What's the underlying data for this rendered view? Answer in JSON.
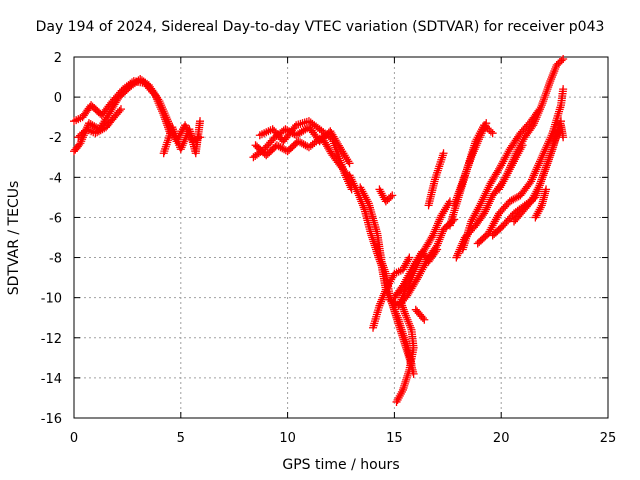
{
  "chart_data": {
    "type": "scatter",
    "title": "Day 194 of 2024, Sidereal Day-to-day VTEC variation (SDTVAR) for receiver p043",
    "xlabel": "GPS time / hours",
    "ylabel": "SDTVAR / TECUs",
    "xlim": [
      0,
      25
    ],
    "ylim": [
      -16,
      2
    ],
    "xticks": [
      0,
      5,
      10,
      15,
      20,
      25
    ],
    "yticks": [
      2,
      0,
      -2,
      -4,
      -6,
      -8,
      -10,
      -12,
      -14,
      -16
    ],
    "grid": true,
    "marker": "plus",
    "color": "#ff0000",
    "series": [
      {
        "values": [
          [
            0,
            -1.2
          ],
          [
            0.4,
            -1.0
          ],
          [
            0.8,
            -0.4
          ],
          [
            1.3,
            -0.9
          ],
          [
            1.8,
            -0.2
          ],
          [
            2.3,
            0.4
          ],
          [
            2.8,
            0.8
          ],
          [
            3.3,
            0.7
          ],
          [
            3.8,
            0.1
          ],
          [
            4.2,
            -0.9
          ],
          [
            4.5,
            -1.8
          ]
        ]
      },
      {
        "values": [
          [
            0,
            -2.7
          ],
          [
            0.3,
            -2.3
          ],
          [
            0.7,
            -1.3
          ],
          [
            1.2,
            -1.6
          ],
          [
            1.6,
            -0.9
          ],
          [
            2.1,
            0.0
          ],
          [
            2.6,
            0.5
          ],
          [
            3.1,
            0.9
          ],
          [
            3.5,
            0.6
          ],
          [
            4.0,
            -0.2
          ],
          [
            4.4,
            -1.2
          ]
        ]
      },
      {
        "values": [
          [
            0.2,
            -2.0
          ],
          [
            0.6,
            -1.6
          ],
          [
            1.0,
            -1.8
          ],
          [
            1.5,
            -1.5
          ],
          [
            1.8,
            -1.1
          ],
          [
            2.2,
            -0.6
          ]
        ]
      },
      {
        "values": [
          [
            4.2,
            -2.8
          ],
          [
            4.6,
            -1.5
          ],
          [
            5.0,
            -2.6
          ],
          [
            5.4,
            -1.6
          ],
          [
            5.7,
            -2.8
          ],
          [
            5.9,
            -1.2
          ]
        ]
      },
      {
        "values": [
          [
            4.4,
            -1.2
          ],
          [
            4.8,
            -2.2
          ],
          [
            5.2,
            -1.4
          ],
          [
            5.6,
            -2.2
          ],
          [
            5.9,
            -2.0
          ]
        ]
      },
      {
        "values": [
          [
            8.4,
            -3.0
          ],
          [
            8.9,
            -2.6
          ],
          [
            9.4,
            -2.0
          ],
          [
            9.9,
            -1.6
          ],
          [
            10.4,
            -1.9
          ],
          [
            11.0,
            -1.5
          ],
          [
            11.5,
            -2.2
          ],
          [
            12.0,
            -1.7
          ],
          [
            12.5,
            -2.6
          ],
          [
            12.9,
            -3.3
          ]
        ]
      },
      {
        "values": [
          [
            8.5,
            -2.4
          ],
          [
            9.0,
            -2.9
          ],
          [
            9.5,
            -2.4
          ],
          [
            10.0,
            -2.7
          ],
          [
            10.5,
            -2.2
          ],
          [
            11.0,
            -2.5
          ],
          [
            11.6,
            -2.0
          ],
          [
            12.1,
            -2.9
          ],
          [
            12.6,
            -3.6
          ],
          [
            13.0,
            -4.2
          ]
        ]
      },
      {
        "values": [
          [
            8.7,
            -1.9
          ],
          [
            9.3,
            -1.6
          ],
          [
            9.8,
            -2.2
          ],
          [
            10.4,
            -1.4
          ],
          [
            11.0,
            -1.2
          ],
          [
            11.5,
            -1.6
          ],
          [
            12.1,
            -2.1
          ],
          [
            12.7,
            -3.9
          ],
          [
            13.0,
            -4.6
          ]
        ]
      },
      {
        "values": [
          [
            12.9,
            -3.9
          ],
          [
            13.3,
            -4.8
          ],
          [
            13.6,
            -5.6
          ],
          [
            13.9,
            -6.8
          ],
          [
            14.2,
            -7.8
          ],
          [
            14.4,
            -8.4
          ],
          [
            14.6,
            -9.6
          ],
          [
            14.9,
            -10.3
          ],
          [
            15.1,
            -11.0
          ],
          [
            15.4,
            -12.0
          ],
          [
            15.7,
            -13.0
          ],
          [
            15.9,
            -13.8
          ]
        ]
      },
      {
        "values": [
          [
            13.4,
            -4.5
          ],
          [
            13.8,
            -5.3
          ],
          [
            14.2,
            -6.8
          ],
          [
            14.4,
            -8.2
          ],
          [
            14.6,
            -8.8
          ],
          [
            14.8,
            -10.0
          ],
          [
            15.0,
            -10.6
          ],
          [
            15.2,
            -11.1
          ],
          [
            15.4,
            -11.8
          ],
          [
            15.6,
            -12.4
          ],
          [
            15.8,
            -13.3
          ]
        ]
      },
      {
        "values": [
          [
            14.3,
            -4.6
          ],
          [
            14.6,
            -5.2
          ],
          [
            14.9,
            -4.9
          ]
        ]
      },
      {
        "values": [
          [
            14.0,
            -11.5
          ],
          [
            14.3,
            -10.4
          ],
          [
            14.6,
            -9.6
          ],
          [
            15.0,
            -8.8
          ],
          [
            15.4,
            -8.6
          ],
          [
            15.7,
            -8.0
          ]
        ]
      },
      {
        "values": [
          [
            15.1,
            -15.2
          ],
          [
            15.4,
            -14.6
          ],
          [
            15.7,
            -13.6
          ],
          [
            15.9,
            -12.5
          ],
          [
            15.8,
            -11.6
          ],
          [
            15.5,
            -10.8
          ],
          [
            15.3,
            -10.2
          ],
          [
            15.5,
            -9.6
          ],
          [
            15.8,
            -9.0
          ],
          [
            16.3,
            -7.8
          ],
          [
            16.8,
            -6.9
          ],
          [
            17.2,
            -5.9
          ],
          [
            17.6,
            -5.2
          ]
        ]
      },
      {
        "values": [
          [
            14.8,
            -10.1
          ],
          [
            15.2,
            -10.4
          ],
          [
            15.6,
            -9.9
          ],
          [
            16.1,
            -9.0
          ],
          [
            16.6,
            -8.0
          ],
          [
            17.0,
            -7.4
          ],
          [
            17.3,
            -6.6
          ],
          [
            17.8,
            -6.1
          ]
        ]
      },
      {
        "values": [
          [
            15.0,
            -10.0
          ],
          [
            15.4,
            -9.4
          ],
          [
            15.9,
            -8.4
          ],
          [
            16.3,
            -7.7
          ],
          [
            16.6,
            -8.2
          ],
          [
            17.0,
            -7.6
          ]
        ]
      },
      {
        "values": [
          [
            16.0,
            -10.6
          ],
          [
            16.4,
            -11.1
          ]
        ]
      },
      {
        "values": [
          [
            16.6,
            -5.4
          ],
          [
            16.9,
            -4.1
          ],
          [
            17.3,
            -2.8
          ]
        ]
      },
      {
        "values": [
          [
            17.6,
            -6.4
          ],
          [
            18.0,
            -5.0
          ],
          [
            18.4,
            -3.6
          ],
          [
            18.8,
            -2.2
          ],
          [
            19.2,
            -1.4
          ],
          [
            19.6,
            -1.8
          ]
        ]
      },
      {
        "values": [
          [
            17.8,
            -5.4
          ],
          [
            18.2,
            -4.2
          ],
          [
            18.6,
            -3.0
          ],
          [
            19.0,
            -2.0
          ],
          [
            19.3,
            -1.3
          ]
        ]
      },
      {
        "values": [
          [
            17.9,
            -8.0
          ],
          [
            18.3,
            -7.0
          ],
          [
            18.8,
            -6.4
          ],
          [
            19.2,
            -5.8
          ],
          [
            19.6,
            -4.9
          ],
          [
            20.1,
            -4.2
          ],
          [
            20.6,
            -3.2
          ],
          [
            21.0,
            -2.4
          ]
        ]
      },
      {
        "values": [
          [
            18.2,
            -7.6
          ],
          [
            18.6,
            -6.2
          ],
          [
            19.0,
            -5.4
          ],
          [
            19.5,
            -4.3
          ],
          [
            20.0,
            -3.4
          ],
          [
            20.4,
            -2.6
          ],
          [
            20.9,
            -1.8
          ],
          [
            21.4,
            -1.2
          ],
          [
            21.8,
            -0.6
          ]
        ]
      },
      {
        "values": [
          [
            18.9,
            -7.3
          ],
          [
            19.4,
            -6.8
          ],
          [
            19.9,
            -5.8
          ],
          [
            20.4,
            -5.2
          ],
          [
            20.9,
            -4.9
          ],
          [
            21.4,
            -4.2
          ],
          [
            21.9,
            -3.0
          ],
          [
            22.4,
            -1.8
          ],
          [
            22.8,
            -0.4
          ],
          [
            22.9,
            0.4
          ]
        ]
      },
      {
        "values": [
          [
            19.6,
            -6.9
          ],
          [
            20.1,
            -6.4
          ],
          [
            20.6,
            -5.8
          ],
          [
            21.1,
            -5.4
          ],
          [
            21.6,
            -5.0
          ],
          [
            22.0,
            -3.8
          ],
          [
            22.4,
            -2.6
          ],
          [
            22.8,
            -1.2
          ]
        ]
      },
      {
        "values": [
          [
            19.9,
            -4.6
          ],
          [
            20.3,
            -3.8
          ],
          [
            20.7,
            -2.8
          ],
          [
            21.1,
            -2.0
          ],
          [
            21.5,
            -1.4
          ],
          [
            21.9,
            -0.4
          ],
          [
            22.3,
            0.8
          ],
          [
            22.6,
            1.6
          ],
          [
            22.9,
            1.9
          ]
        ]
      },
      {
        "values": [
          [
            20.6,
            -6.2
          ],
          [
            21.0,
            -5.7
          ],
          [
            21.4,
            -5.2
          ],
          [
            21.8,
            -4.4
          ],
          [
            22.2,
            -3.2
          ],
          [
            22.5,
            -2.2
          ],
          [
            22.8,
            -1.4
          ],
          [
            22.9,
            -2.0
          ]
        ]
      },
      {
        "values": [
          [
            21.6,
            -6.0
          ],
          [
            21.9,
            -5.4
          ],
          [
            22.1,
            -4.6
          ]
        ]
      }
    ]
  }
}
